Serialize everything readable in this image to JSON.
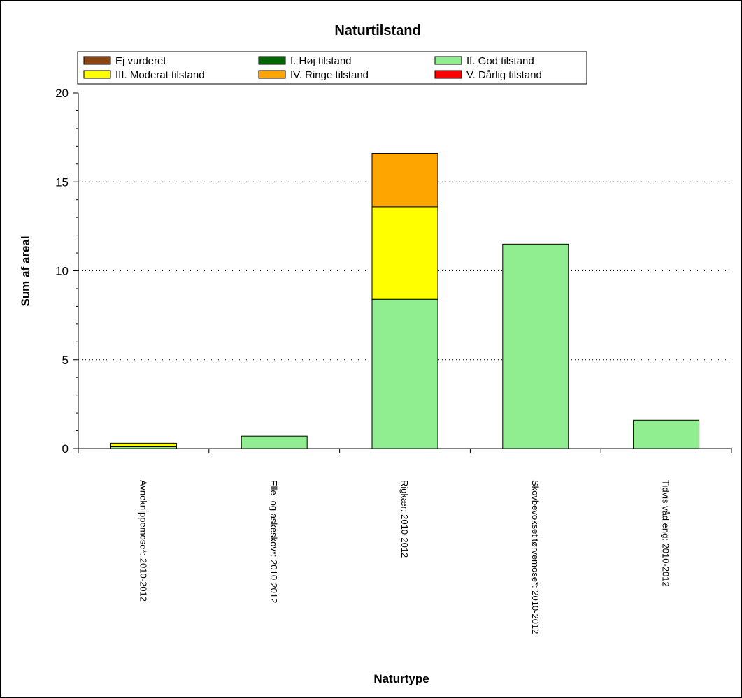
{
  "chart_data": {
    "type": "bar",
    "stacked": true,
    "title": "Naturtilstand",
    "xlabel": "Naturtype",
    "ylabel": "Sum af areal",
    "ylim": [
      0,
      20
    ],
    "yticks": [
      0,
      5,
      10,
      15,
      20
    ],
    "grid": "horizontal dotted",
    "legend_position": "top",
    "categories": [
      "Avneknippemose*: 2010-2012",
      "Elle- og askeskov*: 2010-2012",
      "Rigkær: 2010-2012",
      "Skovbevokset tørvemose*: 2010-2012",
      "Tidvis våd eng: 2010-2012"
    ],
    "series": [
      {
        "name": "Ej vurderet",
        "color": "#8B4513",
        "values": [
          0,
          0,
          0,
          0,
          0
        ]
      },
      {
        "name": "I. Høj tilstand",
        "color": "#006400",
        "values": [
          0,
          0,
          0,
          0,
          0
        ]
      },
      {
        "name": "II. God tilstand",
        "color": "#90EE90",
        "values": [
          0.1,
          0.7,
          8.4,
          11.5,
          1.6
        ]
      },
      {
        "name": "III. Moderat tilstand",
        "color": "#FFFF00",
        "values": [
          0.2,
          0,
          5.2,
          0,
          0
        ]
      },
      {
        "name": "IV. Ringe tilstand",
        "color": "#FFA500",
        "values": [
          0,
          0,
          3.0,
          0,
          0
        ]
      },
      {
        "name": "V. Dårlig tilstand",
        "color": "#FF0000",
        "values": [
          0,
          0,
          0,
          0,
          0
        ]
      }
    ]
  }
}
